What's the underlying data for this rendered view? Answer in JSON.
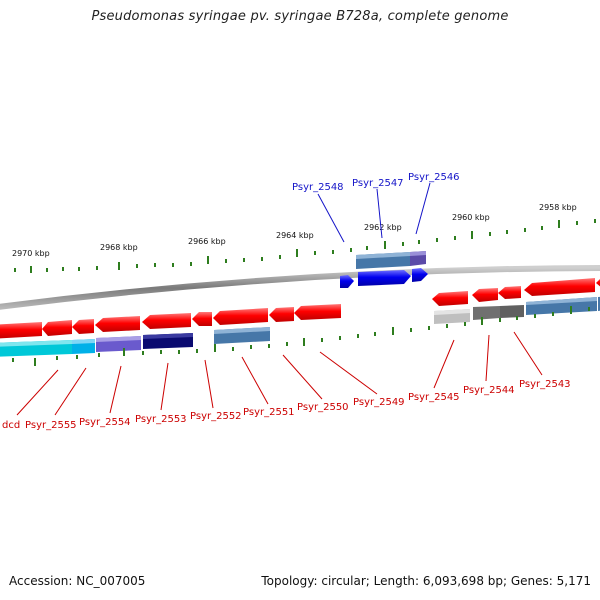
{
  "title": "Pseudomonas syringae pv. syringae B728a, complete genome",
  "footer": {
    "accession": "Accession: NC_007005",
    "stats": "Topology: circular; Length: 6,093,698 bp; Genes: 5,171"
  },
  "colors": {
    "backbone": "#8a8a8a",
    "tick": "#2e7d1e",
    "reverse_gene": "#ff0000",
    "forward_gene": "#0000ee",
    "top_label": "#1414c8",
    "bottom_label": "#cc0000"
  },
  "ruler": {
    "top_labels": [
      "2970 kbp",
      "2968 kbp",
      "2966 kbp",
      "2964 kbp",
      "2962 kbp",
      "2960 kbp",
      "2958 kbp"
    ],
    "bottom_unit": "minor"
  },
  "forward_genes": [
    {
      "name": "Psyr_2548",
      "color": "#0000ee"
    },
    {
      "name": "Psyr_2547",
      "color": "#0000ee"
    },
    {
      "name": "Psyr_2546",
      "color": "#0000ee"
    }
  ],
  "forward_tracks": [
    {
      "name": "cog-track",
      "colors": [
        "#4677a8",
        "#5b4aa8"
      ]
    }
  ],
  "reverse_labels": [
    "dcd",
    "Psyr_2555",
    "Psyr_2554",
    "Psyr_2553",
    "Psyr_2552",
    "Psyr_2551",
    "Psyr_2550",
    "Psyr_2549",
    "Psyr_2545",
    "Psyr_2544",
    "Psyr_2543"
  ],
  "reverse_track_colors": [
    "#00c8d8",
    "#00b0e8",
    "#6a5acd",
    "#0a0a70",
    "#4677a8",
    "#bfbfbf",
    "#707070",
    "#4677a8"
  ]
}
